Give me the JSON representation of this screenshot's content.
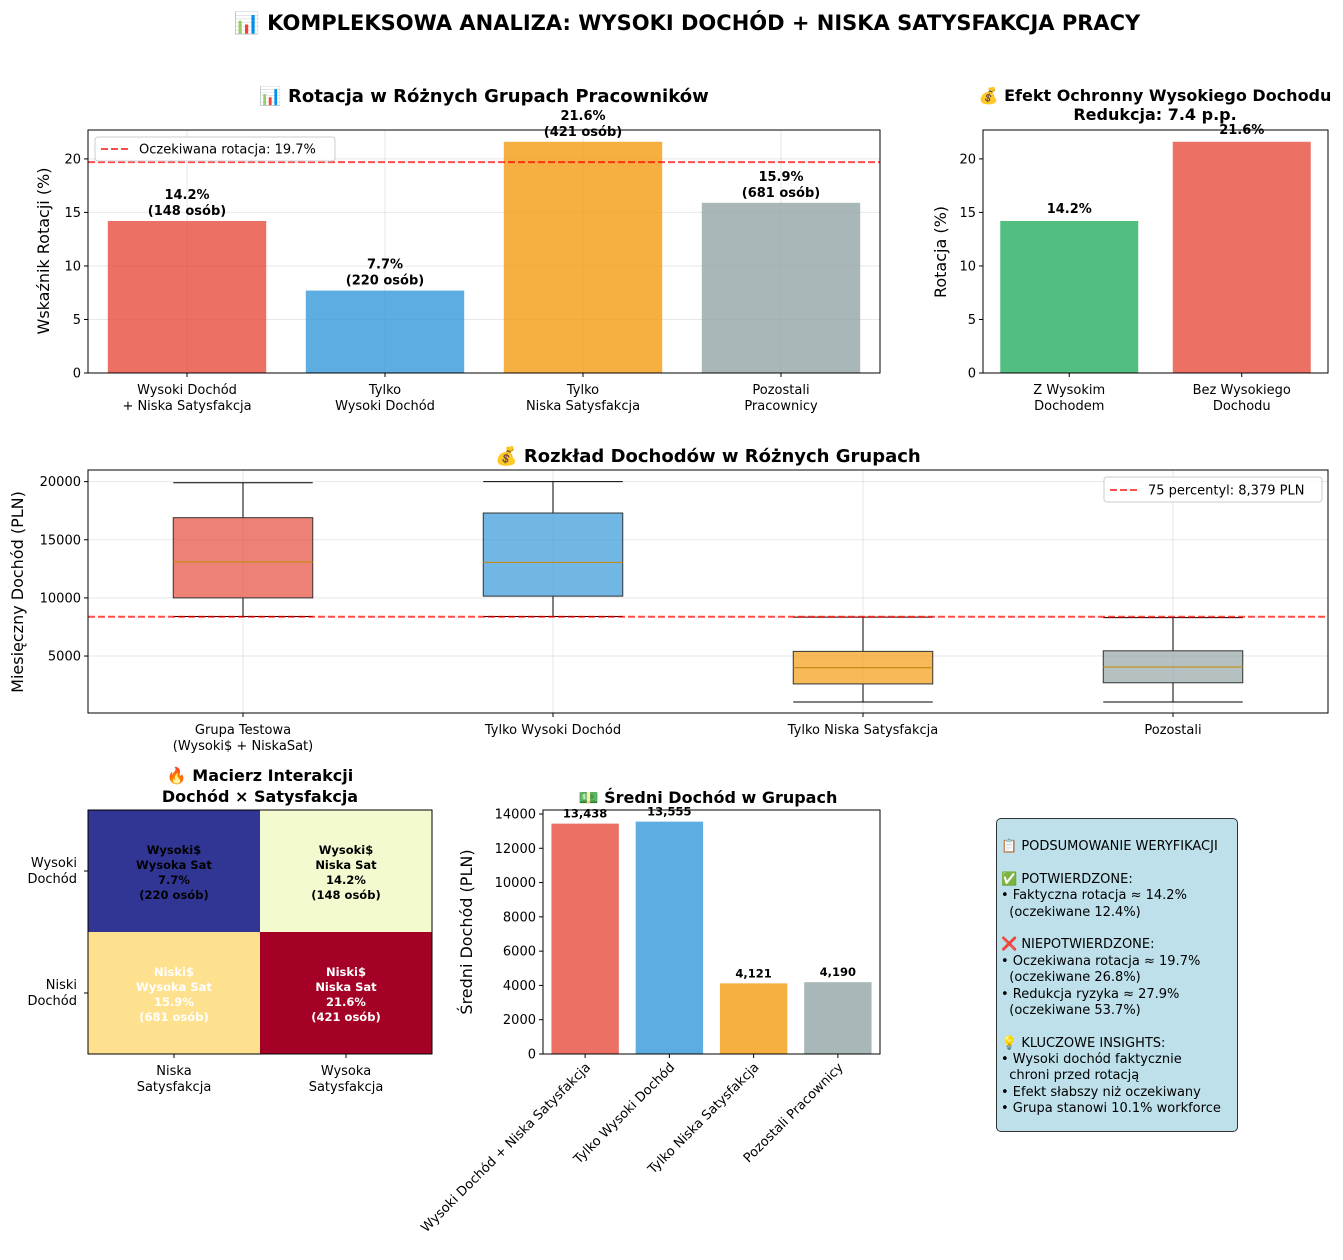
{
  "figure": {
    "suptitle": "📊 KOMPLEKSOWA ANALIZA: WYSOKI DOCHÓD + NISKA SATYSFAKCJA PRACY"
  },
  "chart_data": [
    {
      "id": "rotation",
      "type": "bar",
      "title": "📊 Rotacja w Różnych Grupach Pracowników",
      "ylabel": "Wskaźnik Rotacji (%)",
      "categories": [
        "Wysoki Dochód\n+ Niska Satysfakcja",
        "Tylko\nWysoki Dochód",
        "Tylko\nNiska Satysfakcja",
        "Pozostali\nPracownicy"
      ],
      "values": [
        14.2,
        7.7,
        21.6,
        15.9
      ],
      "colors": [
        "#e74c3c",
        "#3498db",
        "#f39c12",
        "#95a5a6"
      ],
      "bar_labels": [
        "14.2%\n(148 osób)",
        "7.7%\n(220 osób)",
        "21.6%\n(421 osób)",
        "15.9%\n(681 osób)"
      ],
      "ylim": [
        0,
        22.7
      ],
      "yticks": [
        0,
        5,
        10,
        15,
        20
      ],
      "reference_line": {
        "value": 19.7,
        "label": "Oczekiwana rotacja: 19.7%",
        "color": "#ff0000"
      },
      "legend_position": "upper-left",
      "grid": true
    },
    {
      "id": "protective",
      "type": "bar",
      "title": "💰 Efekt Ochronny Wysokiego Dochodu\nRedukcja: 7.4 p.p.",
      "ylabel": "Rotacja (%)",
      "categories": [
        "Z Wysokim\nDochodem",
        "Bez Wysokiego\nDochodu"
      ],
      "values": [
        14.2,
        21.6
      ],
      "colors": [
        "#27ae60",
        "#e74c3c"
      ],
      "bar_labels": [
        "14.2%",
        "21.6%"
      ],
      "ylim": [
        0,
        22.7
      ],
      "yticks": [
        0,
        5,
        10,
        15,
        20
      ],
      "grid": false
    },
    {
      "id": "income-distribution",
      "type": "box",
      "title": "💰 Rozkład Dochodów w Różnych Grupach",
      "ylabel": "Miesięczny Dochód (PLN)",
      "categories": [
        "Grupa Testowa\n(Wysoki$ + NiskaSat)",
        "Tylko Wysoki Dochód",
        "Tylko Niska Satysfakcja",
        "Pozostali"
      ],
      "boxes": [
        {
          "min": 8400,
          "q1": 10000,
          "median": 13100,
          "q3": 16900,
          "max": 19900
        },
        {
          "min": 8400,
          "q1": 10150,
          "median": 13050,
          "q3": 17300,
          "max": 20000
        },
        {
          "min": 1050,
          "q1": 2600,
          "median": 4000,
          "q3": 5400,
          "max": 8350
        },
        {
          "min": 1050,
          "q1": 2700,
          "median": 4050,
          "q3": 5450,
          "max": 8300
        }
      ],
      "colors": [
        "#e74c3c",
        "#3498db",
        "#f39c12",
        "#95a5a6"
      ],
      "ylim": [
        100,
        21000
      ],
      "yticks": [
        5000,
        10000,
        15000,
        20000
      ],
      "reference_line": {
        "value": 8379,
        "label": "75 percentyl: 8,379 PLN",
        "color": "#ff0000"
      },
      "legend_position": "upper-right",
      "grid": true
    },
    {
      "id": "interaction-matrix",
      "type": "heatmap",
      "title": "🔥 Macierz Interakcji\nDochód × Satysfakcja",
      "row_labels": [
        "Wysoki\nDochód",
        "Niski\nDochód"
      ],
      "col_labels": [
        "Niska\nSatysfakcja",
        "Wysoka\nSatysfakcja"
      ],
      "values": [
        [
          7.7,
          14.2
        ],
        [
          15.9,
          21.6
        ]
      ],
      "cell_colors": [
        [
          "#313695",
          "#f3fad0"
        ],
        [
          "#fee18f",
          "#a50026"
        ]
      ],
      "cell_text_colors": [
        [
          "#000000",
          "#000000"
        ],
        [
          "#ffffff",
          "#ffffff"
        ]
      ],
      "cell_labels": [
        [
          "Wysoki$\nWysoka Sat\n7.7%\n(220 osób)",
          "Wysoki$\nNiska Sat\n14.2%\n(148 osób)"
        ],
        [
          "Niski$\nWysoka Sat\n15.9%\n(681 osób)",
          "Niski$\nNiska Sat\n21.6%\n(421 osób)"
        ]
      ]
    },
    {
      "id": "avg-income",
      "type": "bar",
      "title": "💵 Średni Dochód w Grupach",
      "ylabel": "Średni Dochód (PLN)",
      "categories": [
        "Wysoki Dochód + Niska Satysfakcja",
        "Tylko Wysoki Dochód",
        "Tylko Niska Satysfakcja",
        "Pozostali Pracownicy"
      ],
      "values": [
        13438,
        13555,
        4121,
        4190
      ],
      "colors": [
        "#e74c3c",
        "#3498db",
        "#f39c12",
        "#95a5a6"
      ],
      "bar_labels": [
        "13,438",
        "13,555",
        "4,121",
        "4,190"
      ],
      "ylim": [
        0,
        14233
      ],
      "yticks": [
        0,
        2000,
        4000,
        6000,
        8000,
        10000,
        12000,
        14000
      ],
      "grid": false
    }
  ],
  "summary": {
    "lines": [
      "📋 PODSUMOWANIE WERYFIKACJI",
      "",
      "✅ POTWIERDZONE:",
      "• Faktyczna rotacja ≈ 14.2%",
      "  (oczekiwane 12.4%)",
      "",
      "❌ NIEPOTWIERDZONE:",
      "• Oczekiwana rotacja ≈ 19.7%",
      "  (oczekiwane 26.8%)",
      "• Redukcja ryzyka ≈ 27.9%",
      "  (oczekiwane 53.7%)",
      "",
      "💡 KLUCZOWE INSIGHTS:",
      "• Wysoki dochód faktycznie",
      "  chroni przed rotacją",
      "• Efekt słabszy niż oczekiwany",
      "• Grupa stanowi 10.1% workforce"
    ]
  }
}
